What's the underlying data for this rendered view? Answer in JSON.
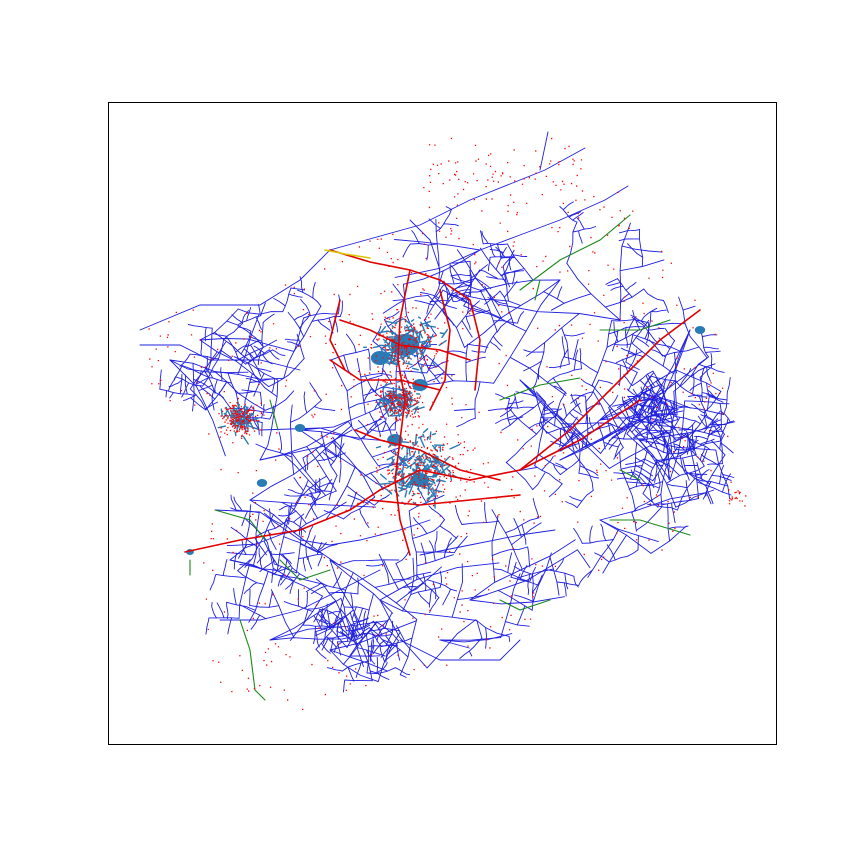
{
  "figure": {
    "type": "network-map",
    "background": "#ffffff",
    "frame_color": "#000000",
    "axes_ticks": "none",
    "legend": "none",
    "title": ""
  },
  "colors": {
    "main_lines": "#1f1fe0",
    "service_lines": "#2a7bb5",
    "load_points": "#ff0000",
    "feeder_highlight": "#e00000",
    "alt_segment_green": "#1a8a1a",
    "alt_segment_yellow": "#d8c800"
  },
  "layers": [
    "distribution-lines-blue",
    "load-points-red",
    "feeder-highlight-red",
    "dense-service-drops-steelblue",
    "green-segments",
    "yellow-segment"
  ]
}
